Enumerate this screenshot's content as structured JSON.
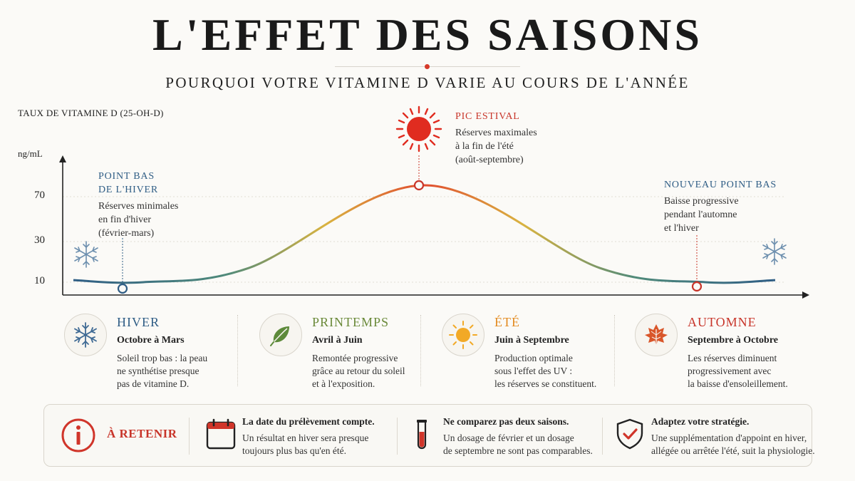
{
  "header": {
    "title": "L'EFFET DES SAISONS",
    "subtitle": "POURQUOI VOTRE VITAMINE D VARIE AU COURS DE L'ANNÉE"
  },
  "chart_data": {
    "type": "line",
    "ylabel": "TAUX DE VITAMINE D (25-OH-D)",
    "yunit": "ng/mL",
    "yticks": [
      10,
      30,
      70
    ],
    "series": [
      {
        "points": [
          [
            0.0,
            11
          ],
          [
            0.1,
            10
          ],
          [
            0.25,
            17
          ],
          [
            0.5,
            78
          ],
          [
            0.75,
            17
          ],
          [
            0.9,
            10
          ],
          [
            1.0,
            11
          ]
        ]
      }
    ],
    "markers": [
      {
        "label": "POINT BAS DE L'HIVER",
        "color": "#2f5d85"
      },
      {
        "label": "PIC ESTIVAL",
        "color": "#c8352a"
      },
      {
        "label": "NOUVEAU POINT BAS",
        "color": "#c8352a"
      }
    ],
    "gradient": [
      "#2f5d85",
      "#e2b63c",
      "#e14b2e",
      "#2f5d85"
    ]
  },
  "annotations": {
    "winter_low": {
      "title_l1": "POINT BAS",
      "title_l2": "DE L'HIVER",
      "l1": "Réserves minimales",
      "l2": "en fin d'hiver",
      "l3": "(février-mars)"
    },
    "summer_peak": {
      "title": "PIC ESTIVAL",
      "l1": "Réserves maximales",
      "l2": "à la fin de l'été",
      "l3": "(août-septembre)"
    },
    "new_low": {
      "title": "NOUVEAU POINT BAS",
      "l1": "Baisse progressive",
      "l2": "pendant l'automne",
      "l3": "et l'hiver"
    }
  },
  "seasons": [
    {
      "name": "HIVER",
      "color": "#2f5d85",
      "icon": "snowflake-icon",
      "dates": "Octobre à Mars",
      "l1": "Soleil trop bas : la peau",
      "l2": "ne synthétise presque",
      "l3": "pas de vitamine D."
    },
    {
      "name": "PRINTEMPS",
      "color": "#6b8a3a",
      "icon": "leaf-icon",
      "dates": "Avril à Juin",
      "l1": "Remontée progressive",
      "l2": "grâce au retour du soleil",
      "l3": "et à l'exposition."
    },
    {
      "name": "ÉTÉ",
      "color": "#e38a1f",
      "icon": "sun-icon",
      "dates": "Juin à Septembre",
      "l1": "Production optimale",
      "l2": "sous l'effet des UV :",
      "l3": "les réserves se constituent."
    },
    {
      "name": "AUTOMNE",
      "color": "#c8352a",
      "icon": "autumn-leaf-icon",
      "dates": "Septembre à Octobre",
      "l1": "Les réserves diminuent",
      "l2": "progressivement avec",
      "l3": "la baisse d'ensoleillement."
    }
  ],
  "retain": {
    "label": "À RETENIR",
    "color": "#c8352a",
    "tips": [
      {
        "icon": "calendar-icon",
        "title": "La date du prélèvement compte.",
        "l1": "Un résultat en hiver sera presque",
        "l2": "toujours plus bas qu'en été."
      },
      {
        "icon": "test-tube-icon",
        "title": "Ne comparez pas deux saisons.",
        "l1": "Un dosage de février et un dosage",
        "l2": "de septembre ne sont pas comparables."
      },
      {
        "icon": "shield-check-icon",
        "title": "Adaptez votre stratégie.",
        "l1": "Une supplémentation d'appoint en hiver,",
        "l2": "allégée ou arrêtée l'été, suit la physiologie."
      }
    ]
  }
}
